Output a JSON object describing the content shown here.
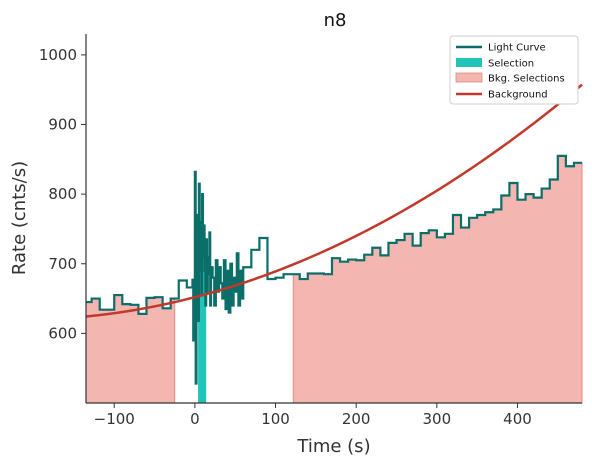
{
  "chart_data": {
    "type": "line",
    "title": "n8",
    "xlabel": "Time (s)",
    "ylabel": "Rate (cnts/s)",
    "xlim": [
      -135,
      480
    ],
    "ylim": [
      500,
      1030
    ],
    "xticks": [
      -100,
      0,
      100,
      200,
      300,
      400
    ],
    "yticks": [
      600,
      700,
      800,
      900,
      1000
    ],
    "grid": false,
    "legend_position": "top-right",
    "legend": [
      "Light Curve",
      "Selection",
      "Bkg. Selections",
      "Background"
    ],
    "colors": {
      "light_curve": "#0b6e69",
      "selection": "#20c4b8",
      "bkg_selection_fill": "#f4b6b0",
      "bkg_selection_edge": "#e08a84",
      "background": "#c0392b"
    },
    "selection_interval": [
      4,
      14
    ],
    "bkg_intervals": [
      [
        -135,
        -25
      ],
      [
        122,
        480
      ]
    ],
    "background_poly": [
      652,
      0.3,
      0.0007
    ],
    "light_curve": {
      "x": [
        -135,
        -128,
        -118,
        -110,
        -100,
        -90,
        -80,
        -70,
        -60,
        -50,
        -40,
        -30,
        -20,
        -10,
        -3,
        -2,
        -1,
        0,
        1,
        2,
        3,
        4,
        5,
        6,
        7,
        8,
        9,
        10,
        11,
        12,
        13,
        14,
        15,
        16,
        17,
        18,
        19,
        20,
        22,
        24,
        26,
        28,
        30,
        32,
        34,
        36,
        38,
        40,
        42,
        44,
        46,
        48,
        50,
        52,
        54,
        56,
        58,
        60,
        70,
        80,
        90,
        100,
        110,
        120,
        130,
        140,
        150,
        160,
        170,
        180,
        190,
        200,
        210,
        220,
        230,
        240,
        250,
        260,
        270,
        280,
        290,
        300,
        310,
        320,
        330,
        340,
        350,
        360,
        370,
        380,
        390,
        400,
        410,
        420,
        430,
        440,
        450,
        460,
        470,
        480
      ],
      "y": [
        645,
        650,
        634,
        634,
        655,
        642,
        641,
        628,
        651,
        652,
        636,
        650,
        676,
        666,
        677,
        590,
        620,
        832,
        528,
        700,
        770,
        618,
        815,
        690,
        760,
        655,
        800,
        710,
        755,
        690,
        640,
        735,
        660,
        710,
        685,
        745,
        640,
        695,
        680,
        640,
        705,
        660,
        695,
        672,
        650,
        705,
        635,
        690,
        630,
        700,
        640,
        680,
        660,
        715,
        640,
        690,
        650,
        695,
        720,
        737,
        678,
        680,
        685,
        685,
        678,
        686,
        686,
        685,
        708,
        703,
        706,
        705,
        713,
        723,
        712,
        730,
        734,
        743,
        726,
        744,
        748,
        738,
        743,
        770,
        752,
        766,
        770,
        774,
        778,
        798,
        816,
        792,
        800,
        795,
        808,
        821,
        855,
        840,
        845,
        845
      ]
    }
  }
}
